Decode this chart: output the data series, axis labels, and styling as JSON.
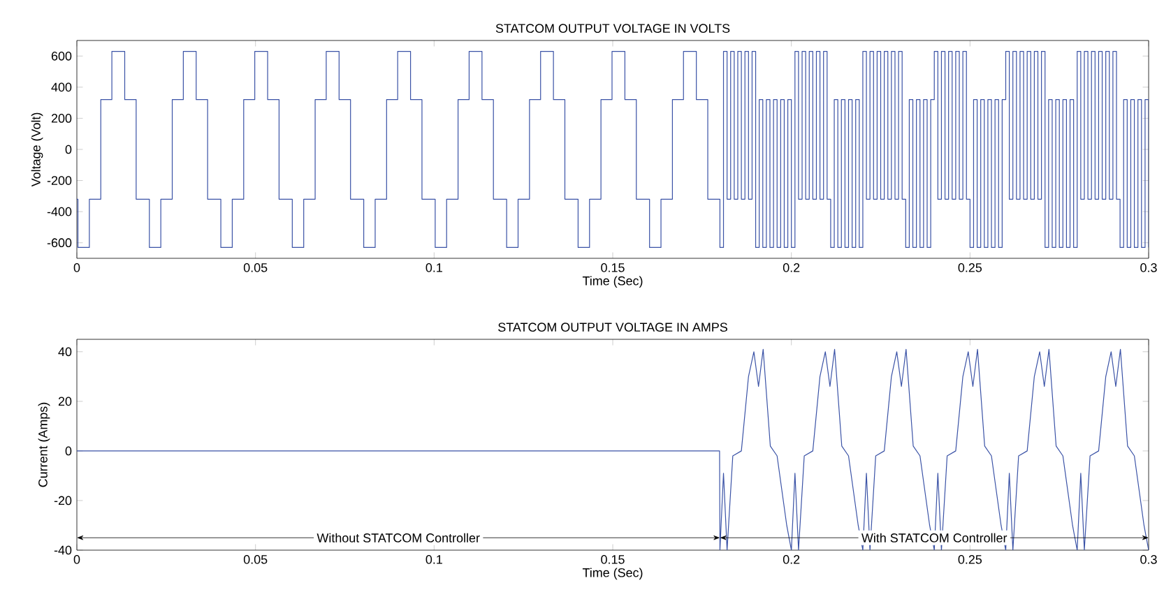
{
  "chart_data": [
    {
      "type": "step",
      "title": "STATCOM OUTPUT VOLTAGE IN VOLTS",
      "xlabel": "Time (Sec)",
      "ylabel": "Voltage (Volt)",
      "xlim": [
        0,
        0.3
      ],
      "xticks": [
        0,
        0.05,
        0.1,
        0.15,
        0.2,
        0.25,
        0.3
      ],
      "ylim": [
        -700,
        700
      ],
      "yticks": [
        -600,
        -400,
        -200,
        0,
        200,
        400,
        600
      ],
      "grid": false,
      "series": [
        {
          "color": "#3a52a6",
          "x": [
            0,
            0.0003,
            0.0035,
            0.0067,
            0.0098,
            0.0134,
            0.0166,
            0.0203,
            0.0235,
            0.0267,
            0.0298,
            0.0334,
            0.0366,
            0.0403,
            0.0435,
            0.0467,
            0.0498,
            0.0534,
            0.0566,
            0.0603,
            0.0635,
            0.0667,
            0.0698,
            0.0734,
            0.0766,
            0.0803,
            0.0835,
            0.0867,
            0.0898,
            0.0934,
            0.0966,
            0.1003,
            0.1035,
            0.1067,
            0.1098,
            0.1134,
            0.1166,
            0.1203,
            0.1235,
            0.1267,
            0.1298,
            0.1334,
            0.1366,
            0.1403,
            0.1435,
            0.1467,
            0.1498,
            0.1534,
            0.1566,
            0.1603,
            0.1635,
            0.1667,
            0.1698,
            0.1734,
            0.1766,
            0.18,
            0.181,
            0.182,
            0.183,
            0.184,
            0.185,
            0.186,
            0.187,
            0.188,
            0.189,
            0.19,
            0.191,
            0.192,
            0.193,
            0.194,
            0.195,
            0.196,
            0.197,
            0.198,
            0.199,
            0.2,
            0.201,
            0.202,
            0.203,
            0.204,
            0.205,
            0.206,
            0.207,
            0.208,
            0.209,
            0.21,
            0.211,
            0.212,
            0.213,
            0.214,
            0.215,
            0.216,
            0.217,
            0.218,
            0.219,
            0.22,
            0.221,
            0.222,
            0.223,
            0.224,
            0.225,
            0.226,
            0.227,
            0.228,
            0.229,
            0.23,
            0.231,
            0.232,
            0.233,
            0.234,
            0.235,
            0.236,
            0.237,
            0.238,
            0.239,
            0.24,
            0.241,
            0.242,
            0.243,
            0.244,
            0.245,
            0.246,
            0.247,
            0.248,
            0.249,
            0.25,
            0.251,
            0.252,
            0.253,
            0.254,
            0.255,
            0.256,
            0.257,
            0.258,
            0.259,
            0.26,
            0.261,
            0.262,
            0.263,
            0.264,
            0.265,
            0.266,
            0.267,
            0.268,
            0.269,
            0.27,
            0.271,
            0.272,
            0.273,
            0.274,
            0.275,
            0.276,
            0.277,
            0.278,
            0.279,
            0.28,
            0.281,
            0.282,
            0.283,
            0.284,
            0.285,
            0.286,
            0.287,
            0.288,
            0.289,
            0.29,
            0.291,
            0.292,
            0.293,
            0.294,
            0.295,
            0.296,
            0.297,
            0.298,
            0.299,
            0.3
          ],
          "values": [
            -320,
            -630,
            -320,
            320,
            630,
            320,
            -320,
            -630,
            -320,
            320,
            630,
            320,
            -320,
            -630,
            -320,
            320,
            630,
            320,
            -320,
            -630,
            -320,
            320,
            630,
            320,
            -320,
            -630,
            -320,
            320,
            630,
            320,
            -320,
            -630,
            -320,
            320,
            630,
            320,
            -320,
            -630,
            -320,
            320,
            630,
            320,
            -320,
            -630,
            -320,
            320,
            630,
            320,
            -320,
            -630,
            -320,
            320,
            630,
            320,
            -320,
            -630,
            630,
            -320,
            630,
            -320,
            630,
            -320,
            630,
            -320,
            630,
            -630,
            320,
            -630,
            320,
            -630,
            320,
            -630,
            320,
            -630,
            320,
            -630,
            630,
            -320,
            630,
            -320,
            630,
            -320,
            630,
            -320,
            630,
            -320,
            -630,
            320,
            -630,
            320,
            -630,
            320,
            -630,
            320,
            -630,
            630,
            -320,
            630,
            -320,
            630,
            -320,
            630,
            -320,
            630,
            -320,
            630,
            -320,
            -630,
            320,
            -630,
            320,
            -630,
            320,
            -630,
            320,
            630,
            -320,
            630,
            -320,
            630,
            -320,
            630,
            -320,
            630,
            -320,
            -630,
            320,
            -630,
            320,
            -630,
            320,
            -630,
            320,
            -630,
            320,
            630,
            -320,
            630,
            -320,
            630,
            -320,
            630,
            -320,
            630,
            -320,
            630,
            -630,
            320,
            -630,
            320,
            -630,
            320,
            -630,
            320,
            -630,
            630,
            -320,
            630,
            -320,
            630,
            -320,
            630,
            -320,
            630,
            -320,
            630,
            -320,
            -630,
            320,
            -630,
            320,
            -630,
            320,
            -630,
            320,
            -630
          ]
        }
      ]
    },
    {
      "type": "line",
      "title": "STATCOM OUTPUT VOLTAGE IN AMPS",
      "xlabel": "Time (Sec)",
      "ylabel": "Current (Amps)",
      "xlim": [
        0,
        0.3
      ],
      "xticks": [
        0,
        0.05,
        0.1,
        0.15,
        0.2,
        0.25,
        0.3
      ],
      "ylim": [
        -40,
        45
      ],
      "yticks": [
        -40,
        -20,
        0,
        20,
        40
      ],
      "grid": false,
      "annotations": [
        {
          "text": "Without STATCOM Controller",
          "x": 0.18,
          "y": -35
        },
        {
          "text": "With STATCOM Controller",
          "x": 0.18,
          "y": -35
        }
      ],
      "series": [
        {
          "color": "#3a52a6",
          "x": [
            0,
            0.05,
            0.1,
            0.1799,
            0.18,
            0.181,
            0.182,
            0.1836,
            0.186,
            0.188,
            0.1895,
            0.1908,
            0.1921,
            0.1941,
            0.196,
            0.1987,
            0.2,
            0.201,
            0.202,
            0.2036,
            0.206,
            0.208,
            0.2095,
            0.2108,
            0.2121,
            0.2141,
            0.216,
            0.2187,
            0.22,
            0.221,
            0.222,
            0.2236,
            0.226,
            0.228,
            0.2295,
            0.2308,
            0.2321,
            0.2341,
            0.236,
            0.2387,
            0.24,
            0.241,
            0.242,
            0.2436,
            0.246,
            0.248,
            0.2495,
            0.2508,
            0.2521,
            0.2541,
            0.256,
            0.2587,
            0.26,
            0.261,
            0.262,
            0.2636,
            0.266,
            0.268,
            0.2695,
            0.2708,
            0.2721,
            0.2741,
            0.276,
            0.2787,
            0.28,
            0.281,
            0.282,
            0.2836,
            0.286,
            0.288,
            0.2895,
            0.2908,
            0.2921,
            0.2941,
            0.296,
            0.2987,
            0.3
          ],
          "values": [
            0,
            0,
            0,
            0,
            -40,
            -9,
            -40,
            -2,
            0,
            30,
            40,
            26,
            41,
            2,
            -2,
            -30,
            -40,
            -9,
            -40,
            -2,
            0,
            30,
            40,
            26,
            41,
            2,
            -2,
            -30,
            -40,
            -9,
            -40,
            -2,
            0,
            30,
            40,
            26,
            41,
            2,
            -2,
            -30,
            -40,
            -9,
            -40,
            -2,
            0,
            30,
            40,
            26,
            41,
            2,
            -2,
            -30,
            -40,
            -9,
            -40,
            -2,
            0,
            30,
            40,
            26,
            41,
            2,
            -2,
            -30,
            -40,
            -9,
            -40,
            -2,
            0,
            30,
            40,
            26,
            41,
            2,
            -2,
            -30,
            -40
          ]
        }
      ]
    }
  ]
}
